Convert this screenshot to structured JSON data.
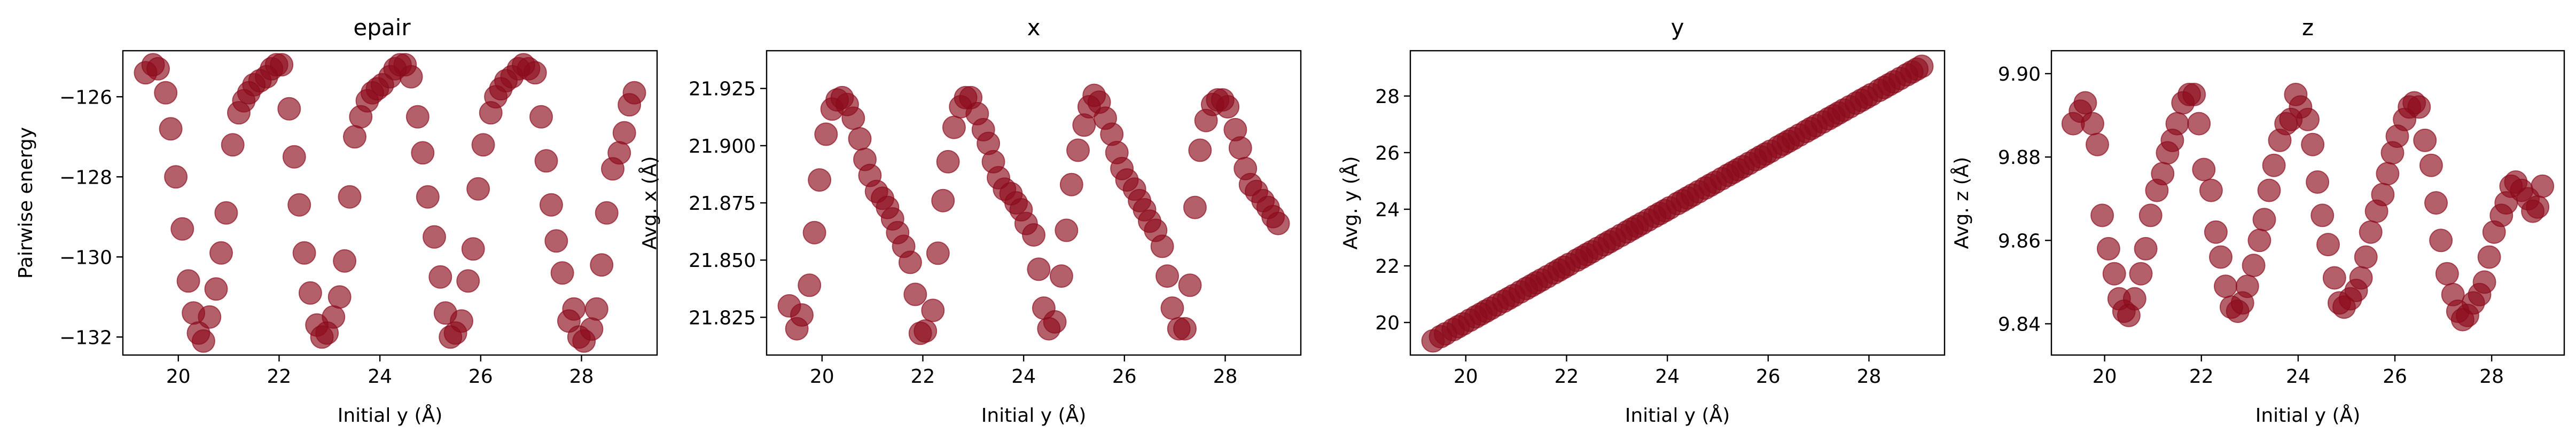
{
  "figure": {
    "marker_color": "#8c0a1c",
    "marker_alpha": 0.65,
    "axis_color": "#000000"
  },
  "chart_data": [
    {
      "type": "scatter",
      "title": "epair",
      "xlabel": "Initial y (Å)",
      "ylabel": "Pairwise energy",
      "xlim": [
        18.9,
        29.5
      ],
      "ylim": [
        -132.45,
        -124.85
      ],
      "xticks": [
        20,
        22,
        24,
        26,
        28
      ],
      "xtick_labels": [
        "20",
        "22",
        "24",
        "26",
        "28"
      ],
      "yticks": [
        -132,
        -130,
        -128,
        -126
      ],
      "ytick_labels": [
        "−132",
        "−130",
        "−128",
        "−126"
      ],
      "x": [
        19.35,
        19.5,
        19.6,
        19.75,
        19.85,
        19.95,
        20.08,
        20.2,
        20.3,
        20.4,
        20.5,
        20.62,
        20.75,
        20.85,
        20.95,
        21.08,
        21.2,
        21.3,
        21.4,
        21.5,
        21.62,
        21.75,
        21.85,
        21.95,
        22.05,
        22.2,
        22.3,
        22.4,
        22.5,
        22.62,
        22.75,
        22.85,
        22.95,
        23.08,
        23.2,
        23.3,
        23.4,
        23.5,
        23.62,
        23.75,
        23.85,
        23.95,
        24.05,
        24.2,
        24.3,
        24.4,
        24.5,
        24.62,
        24.75,
        24.85,
        24.95,
        25.08,
        25.2,
        25.3,
        25.4,
        25.5,
        25.62,
        25.75,
        25.85,
        25.95,
        26.05,
        26.2,
        26.3,
        26.4,
        26.5,
        26.62,
        26.75,
        26.85,
        26.95,
        27.08,
        27.2,
        27.3,
        27.4,
        27.5,
        27.62,
        27.75,
        27.85,
        27.95,
        28.05,
        28.2,
        28.3,
        28.4,
        28.5,
        28.62,
        28.75,
        28.85,
        28.95,
        29.05
      ],
      "y": [
        -125.4,
        -125.2,
        -125.3,
        -125.9,
        -126.8,
        -128.0,
        -129.3,
        -130.6,
        -131.4,
        -131.9,
        -132.1,
        -131.5,
        -130.8,
        -129.9,
        -128.9,
        -127.2,
        -126.4,
        -126.1,
        -125.9,
        -125.7,
        -125.6,
        -125.5,
        -125.3,
        -125.2,
        -125.2,
        -126.3,
        -127.5,
        -128.7,
        -129.9,
        -130.9,
        -131.7,
        -132.0,
        -131.9,
        -131.5,
        -131.0,
        -130.1,
        -128.5,
        -127.0,
        -126.5,
        -126.1,
        -125.9,
        -125.8,
        -125.7,
        -125.5,
        -125.3,
        -125.2,
        -125.2,
        -125.5,
        -126.5,
        -127.4,
        -128.5,
        -129.5,
        -130.5,
        -131.4,
        -132.0,
        -131.9,
        -131.6,
        -130.6,
        -129.8,
        -128.3,
        -127.2,
        -126.4,
        -126.0,
        -125.8,
        -125.6,
        -125.5,
        -125.3,
        -125.2,
        -125.3,
        -125.4,
        -126.5,
        -127.6,
        -128.7,
        -129.6,
        -130.4,
        -131.6,
        -131.3,
        -132.0,
        -132.1,
        -131.8,
        -131.3,
        -130.2,
        -128.9,
        -127.8,
        -127.4,
        -126.9,
        -126.2,
        -125.9
      ]
    },
    {
      "type": "scatter",
      "title": "x",
      "xlabel": "Initial y (Å)",
      "ylabel": "Avg. x (Å)",
      "xlim": [
        18.9,
        29.5
      ],
      "ylim": [
        21.8085,
        21.9415
      ],
      "xticks": [
        20,
        22,
        24,
        26,
        28
      ],
      "xtick_labels": [
        "20",
        "22",
        "24",
        "26",
        "28"
      ],
      "yticks": [
        21.825,
        21.85,
        21.875,
        21.9,
        21.925
      ],
      "ytick_labels": [
        "21.825",
        "21.850",
        "21.875",
        "21.900",
        "21.925"
      ],
      "x": [
        19.35,
        19.5,
        19.6,
        19.75,
        19.85,
        19.95,
        20.08,
        20.2,
        20.3,
        20.4,
        20.5,
        20.62,
        20.75,
        20.85,
        20.95,
        21.08,
        21.2,
        21.3,
        21.4,
        21.5,
        21.62,
        21.75,
        21.85,
        21.95,
        22.05,
        22.2,
        22.3,
        22.4,
        22.5,
        22.62,
        22.75,
        22.85,
        22.95,
        23.08,
        23.2,
        23.3,
        23.4,
        23.5,
        23.62,
        23.75,
        23.85,
        23.95,
        24.05,
        24.2,
        24.3,
        24.4,
        24.5,
        24.62,
        24.75,
        24.85,
        24.95,
        25.08,
        25.2,
        25.3,
        25.4,
        25.5,
        25.62,
        25.75,
        25.85,
        25.95,
        26.05,
        26.2,
        26.3,
        26.4,
        26.5,
        26.62,
        26.75,
        26.85,
        26.95,
        27.08,
        27.2,
        27.3,
        27.4,
        27.5,
        27.62,
        27.75,
        27.85,
        27.95,
        28.05,
        28.2,
        28.3,
        28.4,
        28.5,
        28.62,
        28.75,
        28.85,
        28.95,
        29.05
      ],
      "y": [
        21.83,
        21.82,
        21.826,
        21.839,
        21.862,
        21.885,
        21.905,
        21.916,
        21.92,
        21.921,
        21.918,
        21.912,
        21.903,
        21.894,
        21.887,
        21.88,
        21.877,
        21.873,
        21.868,
        21.862,
        21.856,
        21.849,
        21.835,
        21.818,
        21.819,
        21.828,
        21.853,
        21.876,
        21.893,
        21.908,
        21.917,
        21.921,
        21.921,
        21.914,
        21.907,
        21.901,
        21.893,
        21.886,
        21.881,
        21.879,
        21.875,
        21.872,
        21.866,
        21.861,
        21.846,
        21.829,
        21.82,
        21.823,
        21.843,
        21.863,
        21.883,
        21.898,
        21.909,
        21.917,
        21.922,
        21.919,
        21.912,
        21.905,
        21.897,
        21.89,
        21.885,
        21.881,
        21.876,
        21.872,
        21.867,
        21.863,
        21.856,
        21.843,
        21.829,
        21.82,
        21.82,
        21.839,
        21.873,
        21.898,
        21.911,
        21.918,
        21.92,
        21.92,
        21.917,
        21.907,
        21.899,
        21.89,
        21.883,
        21.88,
        21.876,
        21.873,
        21.869,
        21.866
      ]
    },
    {
      "type": "scatter",
      "title": "y",
      "xlabel": "Initial y (Å)",
      "ylabel": "Avg. y (Å)",
      "xlim": [
        18.9,
        29.5
      ],
      "ylim": [
        18.85,
        29.6
      ],
      "xticks": [
        20,
        22,
        24,
        26,
        28
      ],
      "xtick_labels": [
        "20",
        "22",
        "24",
        "26",
        "28"
      ],
      "yticks": [
        20,
        22,
        24,
        26,
        28
      ],
      "ytick_labels": [
        "20",
        "22",
        "24",
        "26",
        "28"
      ],
      "x": [
        19.35,
        19.5,
        19.6,
        19.75,
        19.85,
        19.95,
        20.08,
        20.2,
        20.3,
        20.4,
        20.5,
        20.62,
        20.75,
        20.85,
        20.95,
        21.08,
        21.2,
        21.3,
        21.4,
        21.5,
        21.62,
        21.75,
        21.85,
        21.95,
        22.05,
        22.2,
        22.3,
        22.4,
        22.5,
        22.62,
        22.75,
        22.85,
        22.95,
        23.08,
        23.2,
        23.3,
        23.4,
        23.5,
        23.62,
        23.75,
        23.85,
        23.95,
        24.05,
        24.2,
        24.3,
        24.4,
        24.5,
        24.62,
        24.75,
        24.85,
        24.95,
        25.08,
        25.2,
        25.3,
        25.4,
        25.5,
        25.62,
        25.75,
        25.85,
        25.95,
        26.05,
        26.2,
        26.3,
        26.4,
        26.5,
        26.62,
        26.75,
        26.85,
        26.95,
        27.08,
        27.2,
        27.3,
        27.4,
        27.5,
        27.62,
        27.75,
        27.85,
        27.95,
        28.05,
        28.2,
        28.3,
        28.4,
        28.5,
        28.62,
        28.75,
        28.85,
        28.95,
        29.05
      ],
      "y": [
        19.35,
        19.5,
        19.6,
        19.75,
        19.85,
        19.95,
        20.08,
        20.2,
        20.3,
        20.4,
        20.5,
        20.62,
        20.75,
        20.85,
        20.95,
        21.08,
        21.2,
        21.3,
        21.4,
        21.5,
        21.62,
        21.75,
        21.85,
        21.95,
        22.05,
        22.2,
        22.3,
        22.4,
        22.5,
        22.62,
        22.75,
        22.85,
        22.95,
        23.08,
        23.2,
        23.3,
        23.4,
        23.5,
        23.62,
        23.75,
        23.85,
        23.95,
        24.05,
        24.2,
        24.3,
        24.4,
        24.5,
        24.62,
        24.75,
        24.85,
        24.95,
        25.08,
        25.2,
        25.3,
        25.4,
        25.5,
        25.62,
        25.75,
        25.85,
        25.95,
        26.05,
        26.2,
        26.3,
        26.4,
        26.5,
        26.62,
        26.75,
        26.85,
        26.95,
        27.08,
        27.2,
        27.3,
        27.4,
        27.5,
        27.62,
        27.75,
        27.85,
        27.95,
        28.05,
        28.2,
        28.3,
        28.4,
        28.5,
        28.62,
        28.75,
        28.85,
        28.95,
        29.05
      ]
    },
    {
      "type": "scatter",
      "title": "z",
      "xlabel": "Initial y (Å)",
      "ylabel": "Avg. z (Å)",
      "xlim": [
        18.9,
        29.5
      ],
      "ylim": [
        9.8325,
        9.9055
      ],
      "xticks": [
        20,
        22,
        24,
        26,
        28
      ],
      "xtick_labels": [
        "20",
        "22",
        "24",
        "26",
        "28"
      ],
      "yticks": [
        9.84,
        9.86,
        9.88,
        9.9
      ],
      "ytick_labels": [
        "9.84",
        "9.86",
        "9.88",
        "9.90"
      ],
      "x": [
        19.35,
        19.5,
        19.6,
        19.75,
        19.85,
        19.95,
        20.08,
        20.2,
        20.3,
        20.4,
        20.5,
        20.62,
        20.75,
        20.85,
        20.95,
        21.08,
        21.2,
        21.3,
        21.4,
        21.5,
        21.62,
        21.75,
        21.85,
        21.95,
        22.05,
        22.2,
        22.3,
        22.4,
        22.5,
        22.62,
        22.75,
        22.85,
        22.95,
        23.08,
        23.2,
        23.3,
        23.4,
        23.5,
        23.62,
        23.75,
        23.85,
        23.95,
        24.05,
        24.2,
        24.3,
        24.4,
        24.5,
        24.62,
        24.75,
        24.85,
        24.95,
        25.08,
        25.2,
        25.3,
        25.4,
        25.5,
        25.62,
        25.75,
        25.85,
        25.95,
        26.05,
        26.2,
        26.3,
        26.4,
        26.5,
        26.62,
        26.75,
        26.85,
        26.95,
        27.08,
        27.2,
        27.3,
        27.4,
        27.5,
        27.62,
        27.75,
        27.85,
        27.95,
        28.05,
        28.2,
        28.3,
        28.4,
        28.5,
        28.62,
        28.75,
        28.85,
        28.95,
        29.05
      ],
      "y": [
        9.888,
        9.891,
        9.893,
        9.888,
        9.883,
        9.866,
        9.858,
        9.852,
        9.846,
        9.843,
        9.842,
        9.846,
        9.852,
        9.858,
        9.866,
        9.872,
        9.876,
        9.881,
        9.884,
        9.888,
        9.893,
        9.895,
        9.895,
        9.888,
        9.877,
        9.872,
        9.862,
        9.856,
        9.849,
        9.844,
        9.843,
        9.845,
        9.849,
        9.854,
        9.86,
        9.865,
        9.872,
        9.878,
        9.884,
        9.888,
        9.889,
        9.895,
        9.892,
        9.889,
        9.883,
        9.874,
        9.866,
        9.859,
        9.851,
        9.845,
        9.844,
        9.846,
        9.848,
        9.851,
        9.856,
        9.862,
        9.867,
        9.871,
        9.876,
        9.881,
        9.885,
        9.889,
        9.892,
        9.893,
        9.892,
        9.884,
        9.878,
        9.869,
        9.86,
        9.852,
        9.847,
        9.843,
        9.841,
        9.842,
        9.845,
        9.847,
        9.85,
        9.856,
        9.862,
        9.866,
        9.869,
        9.873,
        9.874,
        9.872,
        9.87,
        9.867,
        9.868,
        9.873
      ]
    }
  ]
}
